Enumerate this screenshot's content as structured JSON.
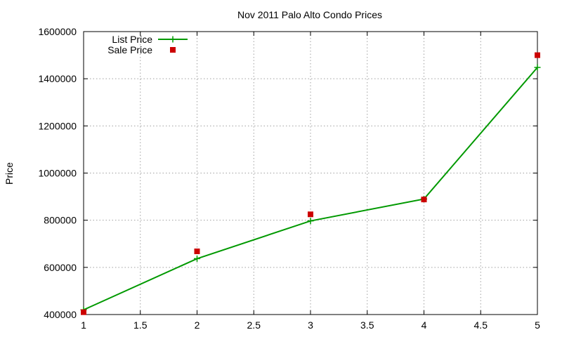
{
  "chart_data": {
    "type": "line",
    "title": "Nov 2011 Palo Alto Condo Prices",
    "xlabel": "",
    "ylabel": "Price",
    "xlim": [
      1,
      5
    ],
    "ylim": [
      400000,
      1600000
    ],
    "x_ticks": [
      "1",
      "1.5",
      "2",
      "2.5",
      "3",
      "3.5",
      "4",
      "4.5",
      "5"
    ],
    "y_ticks": [
      "400000",
      "600000",
      "800000",
      "1000000",
      "1200000",
      "1400000",
      "1600000"
    ],
    "grid": true,
    "legend_position": "top-left",
    "series": [
      {
        "name": "List Price",
        "style": "linespoints",
        "marker": "plus",
        "color": "#009900",
        "x": [
          1,
          2,
          3,
          4,
          5
        ],
        "y": [
          420000,
          637000,
          797000,
          890000,
          1448000
        ]
      },
      {
        "name": "Sale Price",
        "style": "points",
        "marker": "square",
        "color": "#cc0000",
        "x": [
          1,
          2,
          3,
          4,
          5
        ],
        "y": [
          410000,
          668000,
          825000,
          888000,
          1500000
        ]
      }
    ]
  }
}
